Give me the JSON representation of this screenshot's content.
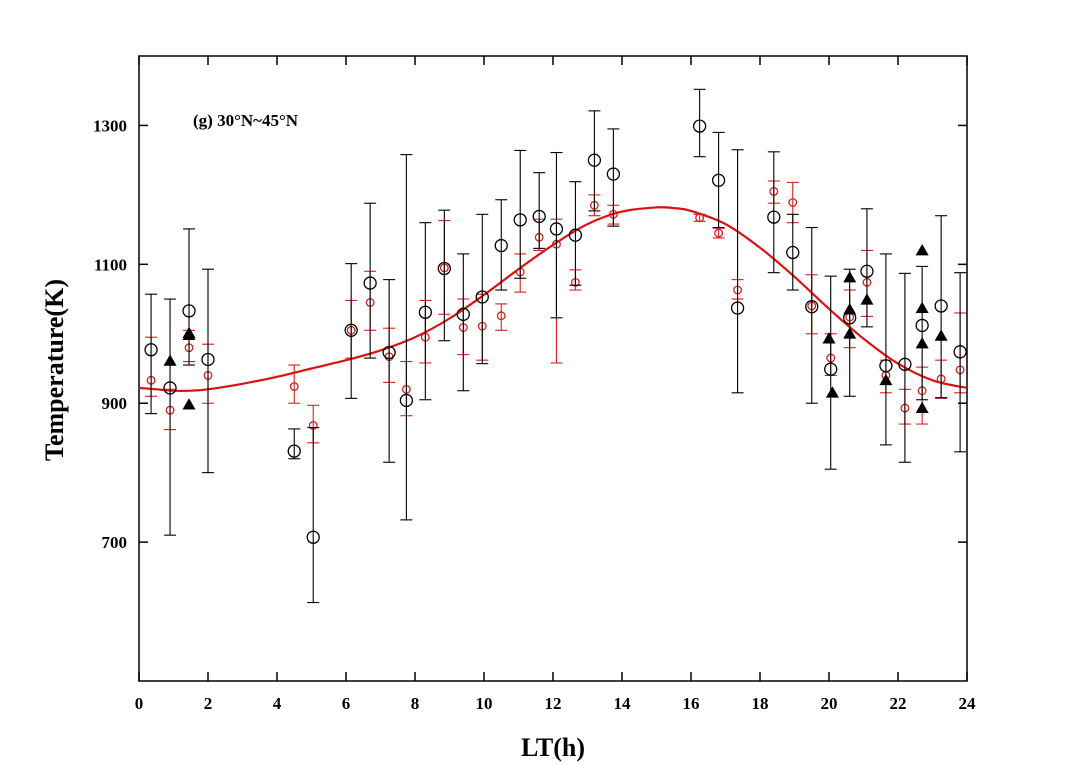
{
  "chart_data": {
    "type": "scatter",
    "annotation": "(g) 30°N~45°N",
    "xlabel": "LT(h)",
    "ylabel": "Temperature(K)",
    "xlim": [
      0,
      24
    ],
    "ylim": [
      500,
      1400
    ],
    "x_ticks": [
      0,
      2,
      4,
      6,
      8,
      10,
      12,
      14,
      16,
      18,
      20,
      22,
      24
    ],
    "y_ticks": [
      700,
      900,
      1100,
      1300
    ],
    "colors": {
      "black": "#000000",
      "red": "#d42020",
      "fit": "#dd1111"
    },
    "series": [
      {
        "marker": "open-circle",
        "color": "#000000",
        "points": [
          {
            "x": 0.35,
            "y": 977,
            "lo": 885,
            "hi": 1057
          },
          {
            "x": 0.9,
            "y": 922,
            "lo": 710,
            "hi": 1050
          },
          {
            "x": 1.45,
            "y": 1033,
            "lo": 955,
            "hi": 1151
          },
          {
            "x": 2.0,
            "y": 963,
            "lo": 800,
            "hi": 1093
          },
          {
            "x": 4.5,
            "y": 831,
            "lo": 820,
            "hi": 863
          },
          {
            "x": 5.05,
            "y": 707,
            "lo": 613,
            "hi": 865
          },
          {
            "x": 6.15,
            "y": 1005,
            "lo": 907,
            "hi": 1101
          },
          {
            "x": 6.7,
            "y": 1073,
            "lo": 965,
            "hi": 1188
          },
          {
            "x": 7.25,
            "y": 973,
            "lo": 815,
            "hi": 1078
          },
          {
            "x": 7.75,
            "y": 904,
            "lo": 732,
            "hi": 1258
          },
          {
            "x": 8.3,
            "y": 1031,
            "lo": 905,
            "hi": 1160
          },
          {
            "x": 8.85,
            "y": 1094,
            "lo": 990,
            "hi": 1178
          },
          {
            "x": 9.4,
            "y": 1028,
            "lo": 918,
            "hi": 1115
          },
          {
            "x": 9.95,
            "y": 1053,
            "lo": 957,
            "hi": 1172
          },
          {
            "x": 10.5,
            "y": 1127,
            "lo": 1063,
            "hi": 1193
          },
          {
            "x": 11.05,
            "y": 1164,
            "lo": 1080,
            "hi": 1264
          },
          {
            "x": 11.6,
            "y": 1169,
            "lo": 1123,
            "hi": 1232
          },
          {
            "x": 12.1,
            "y": 1151,
            "lo": 1023,
            "hi": 1261
          },
          {
            "x": 12.65,
            "y": 1142,
            "lo": 1070,
            "hi": 1219
          },
          {
            "x": 13.2,
            "y": 1250,
            "lo": 1177,
            "hi": 1321
          },
          {
            "x": 13.75,
            "y": 1230,
            "lo": 1155,
            "hi": 1295
          },
          {
            "x": 16.25,
            "y": 1299,
            "lo": 1255,
            "hi": 1352
          },
          {
            "x": 16.8,
            "y": 1221,
            "lo": 1153,
            "hi": 1290
          },
          {
            "x": 17.35,
            "y": 1037,
            "lo": 915,
            "hi": 1265
          },
          {
            "x": 18.4,
            "y": 1168,
            "lo": 1088,
            "hi": 1262
          },
          {
            "x": 18.95,
            "y": 1117,
            "lo": 1063,
            "hi": 1172
          },
          {
            "x": 19.5,
            "y": 1039,
            "lo": 900,
            "hi": 1153
          },
          {
            "x": 20.05,
            "y": 949,
            "lo": 805,
            "hi": 1083
          },
          {
            "x": 20.6,
            "y": 1023,
            "lo": 910,
            "hi": 1093
          },
          {
            "x": 21.1,
            "y": 1090,
            "lo": 1010,
            "hi": 1180
          },
          {
            "x": 21.65,
            "y": 954,
            "lo": 840,
            "hi": 1115
          },
          {
            "x": 22.2,
            "y": 956,
            "lo": 815,
            "hi": 1087
          },
          {
            "x": 22.7,
            "y": 1012,
            "lo": 905,
            "hi": 1097
          },
          {
            "x": 23.25,
            "y": 1040,
            "lo": 908,
            "hi": 1170
          },
          {
            "x": 23.8,
            "y": 974,
            "lo": 830,
            "hi": 1088
          }
        ]
      },
      {
        "marker": "small-open-circle",
        "color": "#d42020",
        "points": [
          {
            "x": 0.35,
            "y": 933,
            "lo": 910,
            "hi": 995
          },
          {
            "x": 0.9,
            "y": 890,
            "lo": 862,
            "hi": 920
          },
          {
            "x": 1.45,
            "y": 980,
            "lo": 960,
            "hi": 1005
          },
          {
            "x": 2.0,
            "y": 940,
            "lo": 900,
            "hi": 985
          },
          {
            "x": 4.5,
            "y": 924,
            "lo": 900,
            "hi": 955
          },
          {
            "x": 5.05,
            "y": 868,
            "lo": 843,
            "hi": 897
          },
          {
            "x": 6.15,
            "y": 1005,
            "lo": 965,
            "hi": 1048
          },
          {
            "x": 6.7,
            "y": 1045,
            "lo": 1005,
            "hi": 1090
          },
          {
            "x": 7.25,
            "y": 967,
            "lo": 930,
            "hi": 1008
          },
          {
            "x": 7.75,
            "y": 920,
            "lo": 882,
            "hi": 960
          },
          {
            "x": 8.3,
            "y": 995,
            "lo": 958,
            "hi": 1048
          },
          {
            "x": 8.85,
            "y": 1095,
            "lo": 1028,
            "hi": 1163
          },
          {
            "x": 9.4,
            "y": 1009,
            "lo": 970,
            "hi": 1050
          },
          {
            "x": 9.95,
            "y": 1011,
            "lo": 962,
            "hi": 1057
          },
          {
            "x": 10.5,
            "y": 1026,
            "lo": 1005,
            "hi": 1043
          },
          {
            "x": 11.05,
            "y": 1089,
            "lo": 1060,
            "hi": 1115
          },
          {
            "x": 11.6,
            "y": 1139,
            "lo": 1120,
            "hi": 1165
          },
          {
            "x": 12.1,
            "y": 1129,
            "lo": 958,
            "hi": 1165
          },
          {
            "x": 12.65,
            "y": 1074,
            "lo": 1063,
            "hi": 1092
          },
          {
            "x": 13.2,
            "y": 1185,
            "lo": 1170,
            "hi": 1200
          },
          {
            "x": 13.75,
            "y": 1172,
            "lo": 1158,
            "hi": 1185
          },
          {
            "x": 16.25,
            "y": 1167,
            "lo": 1162,
            "hi": 1172
          },
          {
            "x": 16.8,
            "y": 1145,
            "lo": 1138,
            "hi": 1152
          },
          {
            "x": 17.35,
            "y": 1063,
            "lo": 1050,
            "hi": 1078
          },
          {
            "x": 18.4,
            "y": 1205,
            "lo": 1188,
            "hi": 1220
          },
          {
            "x": 18.95,
            "y": 1189,
            "lo": 1160,
            "hi": 1218
          },
          {
            "x": 19.5,
            "y": 1040,
            "lo": 1000,
            "hi": 1085
          },
          {
            "x": 20.05,
            "y": 965,
            "lo": 940,
            "hi": 1000
          },
          {
            "x": 20.6,
            "y": 1024,
            "lo": 980,
            "hi": 1063
          },
          {
            "x": 21.1,
            "y": 1074,
            "lo": 1025,
            "hi": 1120
          },
          {
            "x": 21.65,
            "y": 940,
            "lo": 915,
            "hi": 962
          },
          {
            "x": 22.2,
            "y": 893,
            "lo": 870,
            "hi": 920
          },
          {
            "x": 22.7,
            "y": 918,
            "lo": 870,
            "hi": 952
          },
          {
            "x": 23.25,
            "y": 935,
            "lo": 907,
            "hi": 962
          },
          {
            "x": 23.8,
            "y": 948,
            "lo": 915,
            "hi": 1030
          }
        ]
      },
      {
        "marker": "filled-triangle",
        "color": "#000000",
        "points": [
          {
            "x": 0.9,
            "y": 961
          },
          {
            "x": 1.45,
            "y": 998
          },
          {
            "x": 1.45,
            "y": 1001
          },
          {
            "x": 1.45,
            "y": 898
          },
          {
            "x": 20.0,
            "y": 993
          },
          {
            "x": 20.1,
            "y": 915
          },
          {
            "x": 20.6,
            "y": 1081
          },
          {
            "x": 20.6,
            "y": 1035
          },
          {
            "x": 20.6,
            "y": 1000
          },
          {
            "x": 21.1,
            "y": 1049
          },
          {
            "x": 21.65,
            "y": 933
          },
          {
            "x": 22.7,
            "y": 1120
          },
          {
            "x": 22.7,
            "y": 1037
          },
          {
            "x": 22.7,
            "y": 986
          },
          {
            "x": 22.7,
            "y": 893
          },
          {
            "x": 23.25,
            "y": 997
          }
        ]
      }
    ],
    "fit_curve": {
      "color": "#dd1111",
      "samples": [
        {
          "x": 0,
          "y": 922
        },
        {
          "x": 0.5,
          "y": 920
        },
        {
          "x": 1,
          "y": 918
        },
        {
          "x": 1.5,
          "y": 918
        },
        {
          "x": 2,
          "y": 920
        },
        {
          "x": 3,
          "y": 928
        },
        {
          "x": 4,
          "y": 938
        },
        {
          "x": 5,
          "y": 950
        },
        {
          "x": 6,
          "y": 962
        },
        {
          "x": 7,
          "y": 976
        },
        {
          "x": 8,
          "y": 995
        },
        {
          "x": 9,
          "y": 1022
        },
        {
          "x": 10,
          "y": 1056
        },
        {
          "x": 11,
          "y": 1093
        },
        {
          "x": 12,
          "y": 1128
        },
        {
          "x": 13,
          "y": 1158
        },
        {
          "x": 14,
          "y": 1176
        },
        {
          "x": 15,
          "y": 1182
        },
        {
          "x": 15.5,
          "y": 1181
        },
        {
          "x": 16,
          "y": 1177
        },
        {
          "x": 17,
          "y": 1158
        },
        {
          "x": 18,
          "y": 1124
        },
        {
          "x": 19,
          "y": 1082
        },
        {
          "x": 20,
          "y": 1036
        },
        {
          "x": 21,
          "y": 993
        },
        {
          "x": 22,
          "y": 957
        },
        {
          "x": 23,
          "y": 933
        },
        {
          "x": 24,
          "y": 922
        }
      ]
    }
  }
}
